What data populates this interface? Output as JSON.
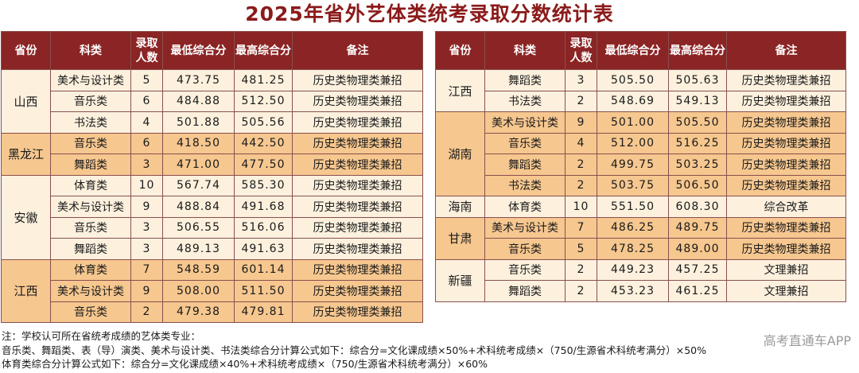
{
  "title": "2025年省外艺体类统考录取分数统计表",
  "headers": {
    "province": "省份",
    "subject": "科类",
    "count": "录取人数",
    "min": "最低综合分",
    "max": "最高综合分",
    "note": "备注"
  },
  "left_groups": [
    {
      "province": "山西",
      "rows": [
        {
          "subject": "美术与设计类",
          "count": "5",
          "min": "473.75",
          "max": "481.25",
          "note": "历史类物理类兼招"
        },
        {
          "subject": "音乐类",
          "count": "6",
          "min": "484.88",
          "max": "512.50",
          "note": "历史类物理类兼招"
        },
        {
          "subject": "书法类",
          "count": "4",
          "min": "501.88",
          "max": "505.56",
          "note": "历史类物理类兼招"
        }
      ]
    },
    {
      "province": "黑龙江",
      "rows": [
        {
          "subject": "音乐类",
          "count": "6",
          "min": "418.50",
          "max": "442.50",
          "note": "历史类物理类兼招"
        },
        {
          "subject": "舞蹈类",
          "count": "3",
          "min": "471.00",
          "max": "477.50",
          "note": "历史类物理类兼招"
        }
      ]
    },
    {
      "province": "安徽",
      "rows": [
        {
          "subject": "体育类",
          "count": "10",
          "min": "567.74",
          "max": "585.30",
          "note": "历史类物理类兼招"
        },
        {
          "subject": "美术与设计类",
          "count": "9",
          "min": "488.84",
          "max": "491.68",
          "note": "历史类物理类兼招"
        },
        {
          "subject": "音乐类",
          "count": "3",
          "min": "506.55",
          "max": "516.06",
          "note": "历史类物理类兼招"
        },
        {
          "subject": "舞蹈类",
          "count": "3",
          "min": "489.13",
          "max": "491.63",
          "note": "历史类物理类兼招"
        }
      ]
    },
    {
      "province": "江西",
      "rows": [
        {
          "subject": "体育类",
          "count": "7",
          "min": "548.59",
          "max": "601.14",
          "note": "历史类物理类兼招"
        },
        {
          "subject": "美术与设计类",
          "count": "9",
          "min": "508.00",
          "max": "511.50",
          "note": "历史类物理类兼招"
        },
        {
          "subject": "音乐类",
          "count": "2",
          "min": "479.38",
          "max": "479.81",
          "note": "历史类物理类兼招"
        }
      ]
    }
  ],
  "right_groups": [
    {
      "province": "江西",
      "rows": [
        {
          "subject": "舞蹈类",
          "count": "3",
          "min": "505.50",
          "max": "505.63",
          "note": "历史类物理类兼招"
        },
        {
          "subject": "书法类",
          "count": "2",
          "min": "548.69",
          "max": "549.13",
          "note": "历史类物理类兼招"
        }
      ]
    },
    {
      "province": "湖南",
      "rows": [
        {
          "subject": "美术与设计类",
          "count": "9",
          "min": "501.00",
          "max": "505.50",
          "note": "历史类物理类兼招"
        },
        {
          "subject": "音乐类",
          "count": "4",
          "min": "512.00",
          "max": "516.25",
          "note": "历史类物理类兼招"
        },
        {
          "subject": "舞蹈类",
          "count": "2",
          "min": "499.75",
          "max": "503.25",
          "note": "历史类物理类兼招"
        },
        {
          "subject": "书法类",
          "count": "2",
          "min": "503.75",
          "max": "506.50",
          "note": "历史类物理类兼招"
        }
      ]
    },
    {
      "province": "海南",
      "rows": [
        {
          "subject": "体育类",
          "count": "10",
          "min": "551.50",
          "max": "608.30",
          "note": "综合改革"
        }
      ]
    },
    {
      "province": "甘肃",
      "rows": [
        {
          "subject": "美术与设计类",
          "count": "7",
          "min": "486.25",
          "max": "489.75",
          "note": "历史类物理类兼招"
        },
        {
          "subject": "音乐类",
          "count": "5",
          "min": "478.25",
          "max": "489.00",
          "note": "历史类物理类兼招"
        }
      ]
    },
    {
      "province": "新疆",
      "rows": [
        {
          "subject": "音乐类",
          "count": "2",
          "min": "449.23",
          "max": "457.25",
          "note": "文理兼招"
        },
        {
          "subject": "舞蹈类",
          "count": "2",
          "min": "453.23",
          "max": "461.25",
          "note": "文理兼招"
        }
      ]
    }
  ],
  "notes": [
    "注：学校认可所在省统考成绩的艺体类专业：",
    "音乐类、舞蹈类、表（导）演类、美术与设计类、书法类综合分计算公式如下：综合分=文化课成绩×50%+术科统考成绩×（750/生源省术科统考满分）×50%",
    "体育类综合分计算公式如下：综合分=文化课成绩×40%+术科统考成绩×（750/生源省术科统考满分）×60%"
  ],
  "watermark": "高考直通车APP"
}
